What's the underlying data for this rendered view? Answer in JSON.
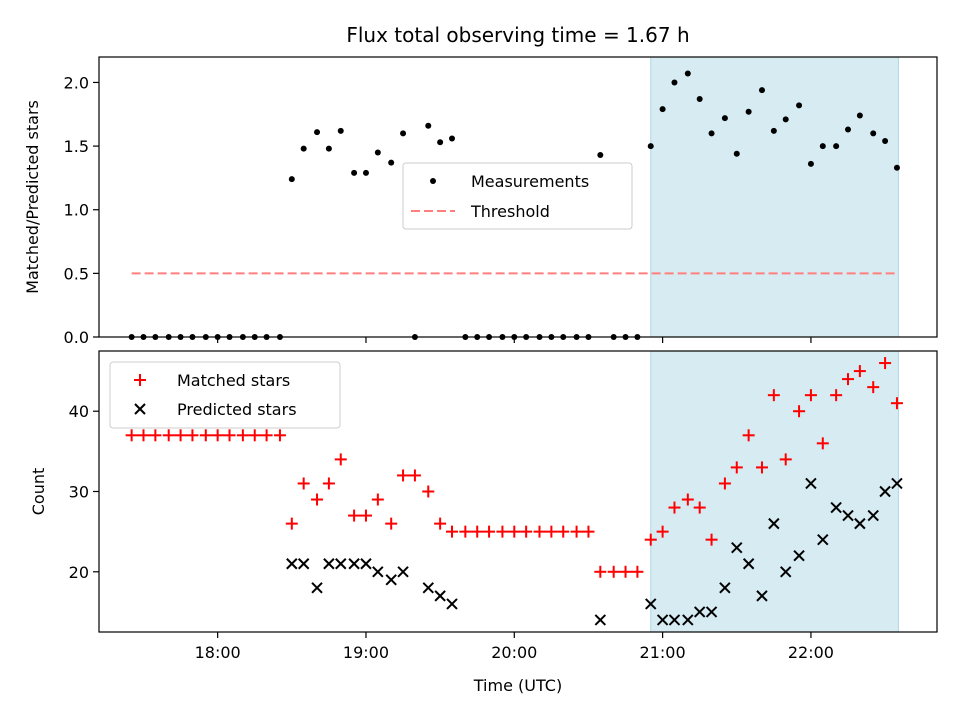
{
  "figure": {
    "title": "Flux total observing time = 1.67 h",
    "xlabel": "Time (UTC)",
    "xticks": [
      "18:00",
      "19:00",
      "20:00",
      "21:00",
      "22:00"
    ]
  },
  "colors": {
    "measurements": "#000000",
    "threshold": "#ff7f7f",
    "matched": "#ff0000",
    "predicted": "#000000",
    "highlight": "#add8e6"
  },
  "chart_data": [
    {
      "type": "scatter",
      "x_unit": "hours UTC",
      "xlim": [
        17.2,
        22.85
      ],
      "ylim": [
        0,
        2.2
      ],
      "ylabel": "Matched/Predicted stars",
      "yticks": [
        "0.0",
        "0.5",
        "1.0",
        "1.5",
        "2.0"
      ],
      "legend_placement": "center-right",
      "highlight_span": [
        20.92,
        22.59
      ],
      "series": [
        {
          "name": "Measurements",
          "x": [
            17.42,
            17.5,
            17.58,
            17.67,
            17.75,
            17.83,
            17.92,
            18.0,
            18.08,
            18.17,
            18.25,
            18.33,
            18.42,
            18.5,
            18.58,
            18.67,
            18.75,
            18.83,
            18.92,
            19.0,
            19.08,
            19.17,
            19.25,
            19.33,
            19.42,
            19.5,
            19.58,
            19.67,
            19.75,
            19.83,
            19.92,
            20.0,
            20.08,
            20.17,
            20.25,
            20.33,
            20.42,
            20.5,
            20.58,
            20.67,
            20.75,
            20.83,
            20.92,
            21.0,
            21.08,
            21.17,
            21.25,
            21.33,
            21.42,
            21.5,
            21.58,
            21.67,
            21.75,
            21.83,
            21.92,
            22.0,
            22.08,
            22.17,
            22.25,
            22.33,
            22.42,
            22.5,
            22.58
          ],
          "y": [
            0,
            0,
            0,
            0,
            0,
            0,
            0,
            0,
            0,
            0,
            0,
            0,
            0,
            1.24,
            1.48,
            1.61,
            1.48,
            1.62,
            1.29,
            1.29,
            1.45,
            1.37,
            1.6,
            0,
            1.66,
            1.53,
            1.56,
            0,
            0,
            0,
            0,
            0,
            0,
            0,
            0,
            0,
            0,
            0,
            1.43,
            0,
            0,
            0,
            1.5,
            1.79,
            2.0,
            2.07,
            1.87,
            1.6,
            1.72,
            1.44,
            1.77,
            1.94,
            1.62,
            1.71,
            1.82,
            1.36,
            1.5,
            1.5,
            1.63,
            1.74,
            1.6,
            1.54,
            1.33
          ]
        },
        {
          "name": "Threshold",
          "x": [
            17.42,
            22.58
          ],
          "y": [
            0.5,
            0.5
          ]
        }
      ]
    },
    {
      "type": "scatter",
      "x_unit": "hours UTC",
      "xlim": [
        17.2,
        22.85
      ],
      "ylim": [
        12.5,
        47.5
      ],
      "ylabel": "Count",
      "yticks": [
        "20",
        "30",
        "40"
      ],
      "legend_placement": "upper-left",
      "highlight_span": [
        20.92,
        22.59
      ],
      "series": [
        {
          "name": "Matched stars",
          "x": [
            17.42,
            17.5,
            17.58,
            17.67,
            17.75,
            17.83,
            17.92,
            18.0,
            18.08,
            18.17,
            18.25,
            18.33,
            18.42,
            18.5,
            18.58,
            18.67,
            18.75,
            18.83,
            18.92,
            19.0,
            19.08,
            19.17,
            19.25,
            19.33,
            19.42,
            19.5,
            19.58,
            19.67,
            19.75,
            19.83,
            19.92,
            20.0,
            20.08,
            20.17,
            20.25,
            20.33,
            20.42,
            20.5,
            20.58,
            20.67,
            20.75,
            20.83,
            20.92,
            21.0,
            21.08,
            21.17,
            21.25,
            21.33,
            21.42,
            21.5,
            21.58,
            21.67,
            21.75,
            21.83,
            21.92,
            22.0,
            22.08,
            22.17,
            22.25,
            22.33,
            22.42,
            22.5,
            22.58
          ],
          "y": [
            37,
            37,
            37,
            37,
            37,
            37,
            37,
            37,
            37,
            37,
            37,
            37,
            37,
            26,
            31,
            29,
            31,
            34,
            27,
            27,
            29,
            26,
            32,
            32,
            30,
            26,
            25,
            25,
            25,
            25,
            25,
            25,
            25,
            25,
            25,
            25,
            25,
            25,
            20,
            20,
            20,
            20,
            24,
            25,
            28,
            29,
            28,
            24,
            31,
            33,
            37,
            33,
            42,
            34,
            40,
            42,
            36,
            42,
            44,
            45,
            43,
            46,
            41
          ]
        },
        {
          "name": "Predicted stars",
          "x": [
            18.5,
            18.58,
            18.67,
            18.75,
            18.83,
            18.92,
            19.0,
            19.08,
            19.17,
            19.25,
            19.42,
            19.5,
            19.58,
            20.58,
            20.92,
            21.0,
            21.08,
            21.17,
            21.25,
            21.33,
            21.42,
            21.5,
            21.58,
            21.67,
            21.75,
            21.83,
            21.92,
            22.0,
            22.08,
            22.17,
            22.25,
            22.33,
            22.42,
            22.5,
            22.58
          ],
          "y": [
            21,
            21,
            18,
            21,
            21,
            21,
            21,
            20,
            19,
            20,
            18,
            17,
            16,
            14,
            16,
            14,
            14,
            14,
            15,
            15,
            18,
            23,
            21,
            17,
            26,
            20,
            22,
            31,
            24,
            28,
            27,
            26,
            27,
            30,
            31
          ]
        }
      ]
    }
  ]
}
